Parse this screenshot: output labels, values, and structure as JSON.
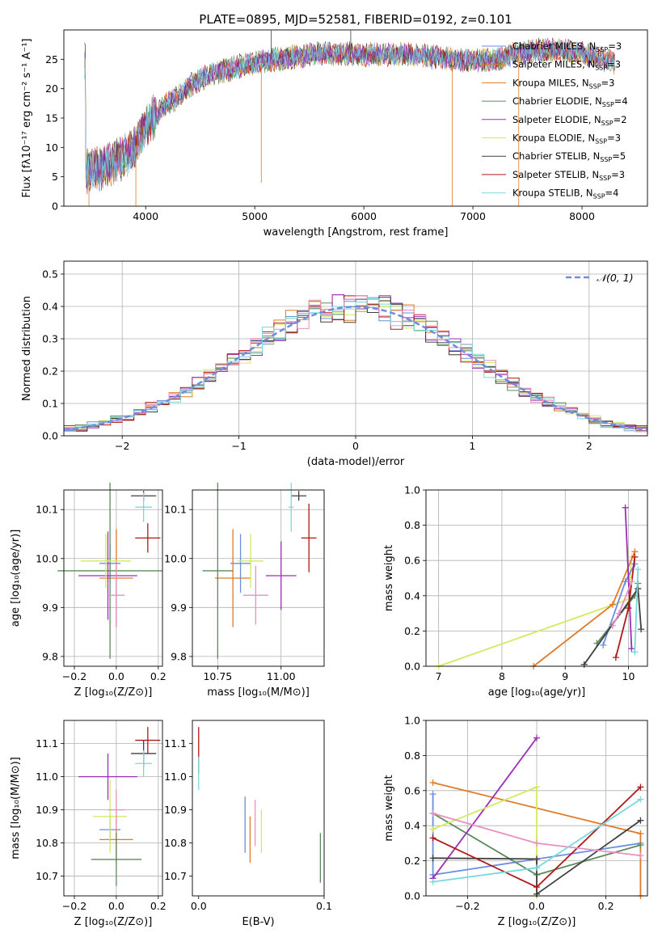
{
  "figure_title": "PLATE=0895, MJD=52581, FIBERID=0192, z=0.101",
  "colors": {
    "c0": "#6b8ee0",
    "c1": "#e07a28",
    "c2": "#5b8b5b",
    "c3": "#9a30b8",
    "c4": "#d4e860",
    "c5": "#404040",
    "c6": "#b01818",
    "c7": "#e890c0",
    "c8": "#78d8e0"
  },
  "chart_data": [
    {
      "id": "spectrum",
      "type": "line",
      "xlabel": "wavelength [Angstrom, rest frame]",
      "ylabel": "Flux [fλ10⁻¹⁷ erg cm⁻² s⁻¹ A⁻¹]",
      "xlim": [
        3250,
        8600
      ],
      "ylim": [
        0,
        30
      ],
      "xticks": [
        "4000",
        "5000",
        "6000",
        "7000",
        "8000"
      ],
      "yticks": [
        "0",
        "5",
        "10",
        "15",
        "20",
        "25"
      ],
      "grid": false,
      "legend_position": "right",
      "legend": [
        {
          "label": "Chabrier MILES, N_SSP=3",
          "text": "Chabrier MILES, N",
          "sub": "SSP",
          "tail": "=3",
          "color": "#6b8ee0"
        },
        {
          "label": "Salpeter MILES, N_SSP=3",
          "text": "Salpeter MILES, N",
          "sub": "SSP",
          "tail": "=3",
          "color": "#e07a28"
        },
        {
          "label": "Kroupa MILES, N_SSP=3",
          "text": "Kroupa MILES, N",
          "sub": "SSP",
          "tail": "=3",
          "color": "#e07a28"
        },
        {
          "label": "Chabrier ELODIE, N_SSP=4",
          "text": "Chabrier ELODIE, N",
          "sub": "SSP",
          "tail": "=4",
          "color": "#5b8b5b"
        },
        {
          "label": "Salpeter ELODIE, N_SSP=2",
          "text": "Salpeter ELODIE, N",
          "sub": "SSP",
          "tail": "=2",
          "color": "#9a30b8"
        },
        {
          "label": "Kroupa ELODIE, N_SSP=3",
          "text": "Kroupa ELODIE, N",
          "sub": "SSP",
          "tail": "=3",
          "color": "#d4e860"
        },
        {
          "label": "Chabrier STELIB, N_SSP=5",
          "text": "Chabrier STELIB, N",
          "sub": "SSP",
          "tail": "=5",
          "color": "#404040"
        },
        {
          "label": "Salpeter STELIB, N_SSP=3",
          "text": "Salpeter STELIB, N",
          "sub": "SSP",
          "tail": "=3",
          "color": "#b01818"
        },
        {
          "label": "Kroupa STELIB, N_SSP=4",
          "text": "Kroupa STELIB, N",
          "sub": "SSP",
          "tail": "=4",
          "color": "#78d8e0"
        }
      ],
      "continuum": [
        [
          3450,
          6.0
        ],
        [
          3600,
          6.5
        ],
        [
          3700,
          7.5
        ],
        [
          3800,
          8.5
        ],
        [
          3900,
          10.0
        ],
        [
          3950,
          11.5
        ],
        [
          4000,
          14.0
        ],
        [
          4100,
          15.5
        ],
        [
          4200,
          17.5
        ],
        [
          4300,
          18.5
        ],
        [
          4400,
          20.5
        ],
        [
          4500,
          21.5
        ],
        [
          4600,
          22.5
        ],
        [
          4700,
          23.0
        ],
        [
          4800,
          23.5
        ],
        [
          4900,
          24.0
        ],
        [
          5000,
          24.5
        ],
        [
          5200,
          25.0
        ],
        [
          5400,
          25.5
        ],
        [
          5600,
          26.0
        ],
        [
          5800,
          26.0
        ],
        [
          6000,
          25.8
        ],
        [
          6200,
          25.8
        ],
        [
          6400,
          25.8
        ],
        [
          6600,
          25.5
        ],
        [
          6800,
          25.0
        ],
        [
          7000,
          24.8
        ],
        [
          7200,
          25.0
        ],
        [
          7400,
          26.0
        ],
        [
          7600,
          26.5
        ],
        [
          7800,
          26.5
        ],
        [
          8000,
          26.0
        ],
        [
          8200,
          25.0
        ],
        [
          8300,
          24.5
        ]
      ],
      "spikes": [
        {
          "x": 5060,
          "y": 4.0
        },
        {
          "x": 5150,
          "y": 30.0
        },
        {
          "x": 5880,
          "y": 30.0
        },
        {
          "x": 6810,
          "y": 0.0
        },
        {
          "x": 7420,
          "y": 0.0
        },
        {
          "x": 3910,
          "y": 0.0
        },
        {
          "x": 3480,
          "y": 0.0
        }
      ]
    },
    {
      "id": "residuals",
      "type": "bar",
      "xlabel": "(data-model)/error",
      "ylabel": "Normed distribution",
      "xlim": [
        -2.5,
        2.5
      ],
      "ylim": [
        0,
        0.54
      ],
      "xticks": [
        "−2",
        "−1",
        "0",
        "1",
        "2"
      ],
      "xtick_values": [
        -2,
        -1,
        0,
        1,
        2
      ],
      "yticks": [
        "0.0",
        "0.1",
        "0.2",
        "0.3",
        "0.4",
        "0.5"
      ],
      "ytick_values": [
        0,
        0.1,
        0.2,
        0.3,
        0.4,
        0.5
      ],
      "grid": true,
      "bin_width": 0.1,
      "legend": {
        "label": "𝒩(0, 1)",
        "position": "top-right",
        "style": "dashed",
        "color": "#6b8ee0"
      }
    },
    {
      "id": "age_Z",
      "type": "scatter",
      "xlabel": "Z [log₁₀(Z/Z⊙)]",
      "ylabel": "age  [log₁₀(age/yr)]",
      "xlim": [
        -0.25,
        0.22
      ],
      "ylim": [
        9.78,
        10.14
      ],
      "xticks": [
        "−0.2",
        "0.0",
        "0.2"
      ],
      "xtick_values": [
        -0.2,
        0,
        0.2
      ],
      "yticks": [
        "9.8",
        "9.9",
        "10.0",
        "10.1"
      ],
      "ytick_values": [
        9.8,
        9.9,
        10.0,
        10.1
      ],
      "grid": true,
      "points": [
        {
          "x": -0.03,
          "y": 9.99,
          "xe": 0.05,
          "ye": 0.04,
          "color": "#6b8ee0"
        },
        {
          "x": 0.0,
          "y": 9.96,
          "xe": 0.08,
          "ye": 0.1,
          "color": "#e07a28"
        },
        {
          "x": -0.03,
          "y": 9.975,
          "xe": 0.25,
          "ye": 0.18,
          "color": "#5b8b5b"
        },
        {
          "x": -0.04,
          "y": 9.965,
          "xe": 0.14,
          "ye": 0.09,
          "color": "#9a30b8"
        },
        {
          "x": -0.05,
          "y": 9.995,
          "xe": 0.12,
          "ye": 0.055,
          "color": "#d4e860"
        },
        {
          "x": 0.13,
          "y": 10.128,
          "xe": 0.06,
          "ye": 0.01,
          "color": "#404040"
        },
        {
          "x": 0.15,
          "y": 10.042,
          "xe": 0.06,
          "ye": 0.03,
          "color": "#b01818"
        },
        {
          "x": 0.0,
          "y": 9.925,
          "xe": 0.04,
          "ye": 0.065,
          "color": "#e890c0"
        },
        {
          "x": 0.13,
          "y": 10.105,
          "xe": 0.04,
          "ye": 0.03,
          "color": "#78d8e0"
        }
      ]
    },
    {
      "id": "age_mass",
      "type": "scatter",
      "xlabel": "mass [log₁₀(M/M⊙)]",
      "ylabel": "",
      "xlim": [
        10.65,
        11.17
      ],
      "ylim": [
        9.78,
        10.14
      ],
      "xticks": [
        "10.75",
        "11.00"
      ],
      "xtick_values": [
        10.75,
        11.0
      ],
      "yticks": [
        "9.8",
        "9.9",
        "10.0",
        "10.1"
      ],
      "ytick_values": [
        9.8,
        9.9,
        10.0,
        10.1
      ],
      "grid": true,
      "points": [
        {
          "x": 10.84,
          "y": 9.99,
          "xe": 0.04,
          "ye": 0.06,
          "color": "#6b8ee0"
        },
        {
          "x": 10.81,
          "y": 9.96,
          "xe": 0.07,
          "ye": 0.1,
          "color": "#e07a28"
        },
        {
          "x": 10.75,
          "y": 9.975,
          "xe": 0.06,
          "ye": 0.18,
          "color": "#5b8b5b"
        },
        {
          "x": 11.0,
          "y": 9.965,
          "xe": 0.06,
          "ye": 0.07,
          "color": "#9a30b8"
        },
        {
          "x": 10.88,
          "y": 9.995,
          "xe": 0.05,
          "ye": 0.055,
          "color": "#d4e860"
        },
        {
          "x": 11.07,
          "y": 10.128,
          "xe": 0.03,
          "ye": 0.01,
          "color": "#404040"
        },
        {
          "x": 11.11,
          "y": 10.042,
          "xe": 0.03,
          "ye": 0.07,
          "color": "#b01818"
        },
        {
          "x": 10.9,
          "y": 9.925,
          "xe": 0.05,
          "ye": 0.06,
          "color": "#e890c0"
        },
        {
          "x": 11.04,
          "y": 10.105,
          "xe": 0.01,
          "ye": 0.05,
          "color": "#78d8e0"
        }
      ]
    },
    {
      "id": "weight_age",
      "type": "line",
      "xlabel": "age  [log₁₀(age/yr)]",
      "ylabel": "mass weight",
      "xlim": [
        6.8,
        10.3
      ],
      "ylim": [
        0,
        1.0
      ],
      "xticks": [
        "7",
        "8",
        "9",
        "10"
      ],
      "xtick_values": [
        7,
        8,
        9,
        10
      ],
      "yticks": [
        "0.0",
        "0.2",
        "0.4",
        "0.6",
        "0.8",
        "1.0"
      ],
      "ytick_values": [
        0,
        0.2,
        0.4,
        0.6,
        0.8,
        1.0
      ],
      "grid": true,
      "series": [
        {
          "color": "#d4e860",
          "points": [
            [
              7.0,
              0.0
            ],
            [
              10.0,
              0.38
            ],
            [
              10.05,
              0.62
            ]
          ]
        },
        {
          "color": "#e07a28",
          "points": [
            [
              8.5,
              0.0
            ],
            [
              9.75,
              0.35
            ],
            [
              10.1,
              0.65
            ]
          ]
        },
        {
          "color": "#6b8ee0",
          "points": [
            [
              9.6,
              0.12
            ],
            [
              9.95,
              0.48
            ],
            [
              10.1,
              0.58
            ]
          ]
        },
        {
          "color": "#9a30b8",
          "points": [
            [
              9.95,
              0.9
            ],
            [
              10.05,
              0.1
            ]
          ]
        },
        {
          "color": "#5b8b5b",
          "points": [
            [
              9.5,
              0.13
            ],
            [
              10.1,
              0.4
            ],
            [
              10.15,
              0.47
            ]
          ]
        },
        {
          "color": "#404040",
          "points": [
            [
              9.3,
              0.01
            ],
            [
              10.15,
              0.44
            ],
            [
              10.2,
              0.21
            ]
          ]
        },
        {
          "color": "#b01818",
          "points": [
            [
              9.8,
              0.05
            ],
            [
              10.0,
              0.33
            ],
            [
              10.1,
              0.62
            ]
          ]
        },
        {
          "color": "#e890c0",
          "points": [
            [
              9.75,
              0.23
            ],
            [
              9.85,
              0.3
            ],
            [
              10.05,
              0.48
            ]
          ]
        },
        {
          "color": "#78d8e0",
          "points": [
            [
              10.1,
              0.08
            ],
            [
              10.15,
              0.55
            ]
          ]
        }
      ]
    },
    {
      "id": "mass_Z",
      "type": "scatter",
      "xlabel": "Z [log₁₀(Z/Z⊙)]",
      "ylabel": "mass [log₁₀(M/M⊙)]",
      "xlim": [
        -0.25,
        0.22
      ],
      "ylim": [
        10.64,
        11.17
      ],
      "xticks": [
        "−0.2",
        "0.0",
        "0.2"
      ],
      "xtick_values": [
        -0.2,
        0,
        0.2
      ],
      "yticks": [
        "10.7",
        "10.8",
        "10.9",
        "11.0",
        "11.1"
      ],
      "ytick_values": [
        10.7,
        10.8,
        10.9,
        11.0,
        11.1
      ],
      "grid": true,
      "points": [
        {
          "x": -0.03,
          "y": 10.84,
          "xe": 0.05,
          "ye": 0.04,
          "color": "#6b8ee0"
        },
        {
          "x": 0.0,
          "y": 10.81,
          "xe": 0.08,
          "ye": 0.07,
          "color": "#e07a28"
        },
        {
          "x": 0.0,
          "y": 10.75,
          "xe": 0.12,
          "ye": 0.08,
          "color": "#5b8b5b"
        },
        {
          "x": -0.04,
          "y": 11.0,
          "xe": 0.14,
          "ye": 0.07,
          "color": "#9a30b8"
        },
        {
          "x": -0.03,
          "y": 10.88,
          "xe": 0.08,
          "ye": 0.11,
          "color": "#d4e860"
        },
        {
          "x": 0.13,
          "y": 11.07,
          "xe": 0.06,
          "ye": 0.04,
          "color": "#404040"
        },
        {
          "x": 0.15,
          "y": 11.11,
          "xe": 0.06,
          "ye": 0.04,
          "color": "#b01818"
        },
        {
          "x": 0.0,
          "y": 10.9,
          "xe": 0.04,
          "ye": 0.06,
          "color": "#e890c0"
        },
        {
          "x": 0.13,
          "y": 11.04,
          "xe": 0.04,
          "ye": 0.04,
          "color": "#78d8e0"
        }
      ]
    },
    {
      "id": "mass_ebv",
      "type": "scatter",
      "xlabel": "E(B-V)",
      "ylabel": "",
      "xlim": [
        -0.005,
        0.1
      ],
      "ylim": [
        10.64,
        11.17
      ],
      "xticks": [
        "0.0",
        "0.1"
      ],
      "xtick_values": [
        0,
        0.1
      ],
      "yticks": [
        "10.7",
        "10.8",
        "10.9",
        "11.0",
        "11.1"
      ],
      "ytick_values": [
        10.7,
        10.8,
        10.9,
        11.0,
        11.1
      ],
      "grid": false,
      "points": [
        {
          "x": 0.0,
          "y": 11.08,
          "ye": 0.07,
          "color": "#b01818"
        },
        {
          "x": 0.0,
          "y": 11.01,
          "ye": 0.05,
          "color": "#78d8e0"
        },
        {
          "x": 0.037,
          "y": 10.855,
          "ye": 0.085,
          "color": "#6b8ee0"
        },
        {
          "x": 0.041,
          "y": 10.81,
          "ye": 0.07,
          "color": "#e07a28"
        },
        {
          "x": 0.045,
          "y": 10.86,
          "ye": 0.07,
          "color": "#e890c0"
        },
        {
          "x": 0.05,
          "y": 10.835,
          "ye": 0.065,
          "color": "#d4e860"
        },
        {
          "x": 0.097,
          "y": 10.755,
          "ye": 0.075,
          "color": "#5b8b5b"
        }
      ]
    },
    {
      "id": "weight_Z",
      "type": "line",
      "xlabel": "Z [log₁₀(Z/Z⊙)]",
      "ylabel": "mass weight",
      "xlim": [
        -0.32,
        0.32
      ],
      "ylim": [
        0,
        1.0
      ],
      "xticks": [
        "−0.2",
        "0.0",
        "0.2"
      ],
      "xtick_values": [
        -0.2,
        0,
        0.2
      ],
      "yticks": [
        "0.0",
        "0.2",
        "0.4",
        "0.6",
        "0.8",
        "1.0"
      ],
      "ytick_values": [
        0,
        0.2,
        0.4,
        0.6,
        0.8,
        1.0
      ],
      "grid": true,
      "series": [
        {
          "color": "#6b8ee0",
          "points": [
            [
              -0.3,
              0.58
            ],
            [
              -0.3,
              0.12
            ],
            [
              0.3,
              0.3
            ]
          ]
        },
        {
          "color": "#e07a28",
          "points": [
            [
              -0.3,
              0.645
            ],
            [
              0.3,
              0.355
            ],
            [
              0.3,
              0.0
            ]
          ]
        },
        {
          "color": "#5b8b5b",
          "points": [
            [
              -0.3,
              0.47
            ],
            [
              0.0,
              0.12
            ],
            [
              0.3,
              0.29
            ]
          ]
        },
        {
          "color": "#9a30b8",
          "points": [
            [
              -0.3,
              0.1
            ],
            [
              0.0,
              0.9
            ]
          ]
        },
        {
          "color": "#d4e860",
          "points": [
            [
              -0.3,
              0.38
            ],
            [
              0.0,
              0.62
            ],
            [
              0.0,
              0.0
            ]
          ]
        },
        {
          "color": "#404040",
          "points": [
            [
              -0.3,
              0.215
            ],
            [
              0.0,
              0.21
            ],
            [
              0.0,
              0.01
            ],
            [
              0.3,
              0.43
            ]
          ]
        },
        {
          "color": "#b01818",
          "points": [
            [
              -0.3,
              0.33
            ],
            [
              0.0,
              0.05
            ],
            [
              0.3,
              0.62
            ]
          ]
        },
        {
          "color": "#e890c0",
          "points": [
            [
              -0.3,
              0.47
            ],
            [
              0.0,
              0.3
            ],
            [
              0.3,
              0.23
            ]
          ]
        },
        {
          "color": "#78d8e0",
          "points": [
            [
              -0.3,
              0.08
            ],
            [
              0.0,
              0.16
            ],
            [
              0.3,
              0.55
            ]
          ]
        }
      ]
    }
  ]
}
